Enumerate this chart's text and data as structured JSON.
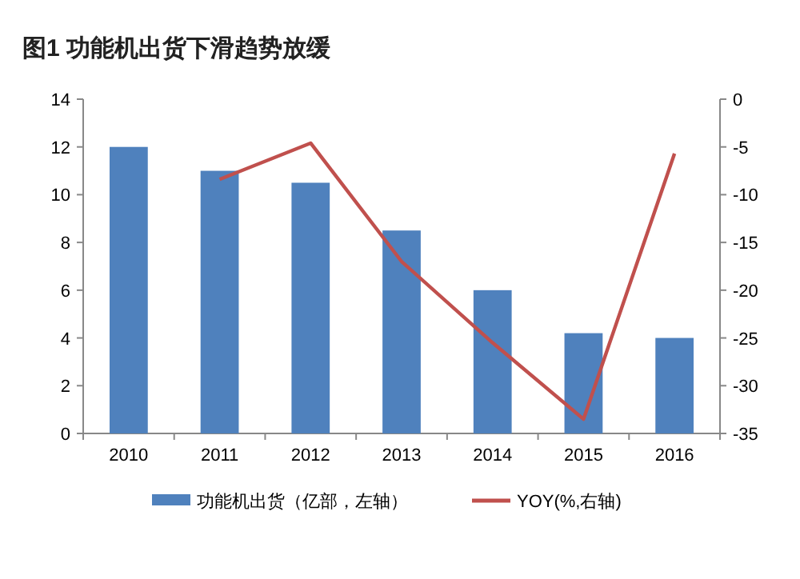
{
  "chart_data": {
    "type": "bar",
    "title": "图1  功能机出货下滑趋势放缓",
    "categories": [
      "2010",
      "2011",
      "2012",
      "2013",
      "2014",
      "2015",
      "2016"
    ],
    "series": [
      {
        "name": "功能机出货（亿部，左轴）",
        "color": "#4f81bd",
        "values": [
          12,
          11,
          10.5,
          8.5,
          6,
          4.2,
          4
        ]
      },
      {
        "name": "YOY(%,右轴)",
        "type": "line",
        "axis": "y2",
        "color": "#c0504d",
        "values": [
          null,
          -8.4,
          -4.6,
          -17,
          -25.5,
          -33.5,
          -5.7
        ]
      }
    ],
    "ylim": [
      0,
      14
    ],
    "yticks": [
      0,
      2,
      4,
      6,
      8,
      10,
      12,
      14
    ],
    "y2lim": [
      -35,
      0
    ],
    "y2ticks": [
      -35,
      -30,
      -25,
      -20,
      -15,
      -10,
      -5,
      0
    ],
    "legend": "bottom"
  }
}
